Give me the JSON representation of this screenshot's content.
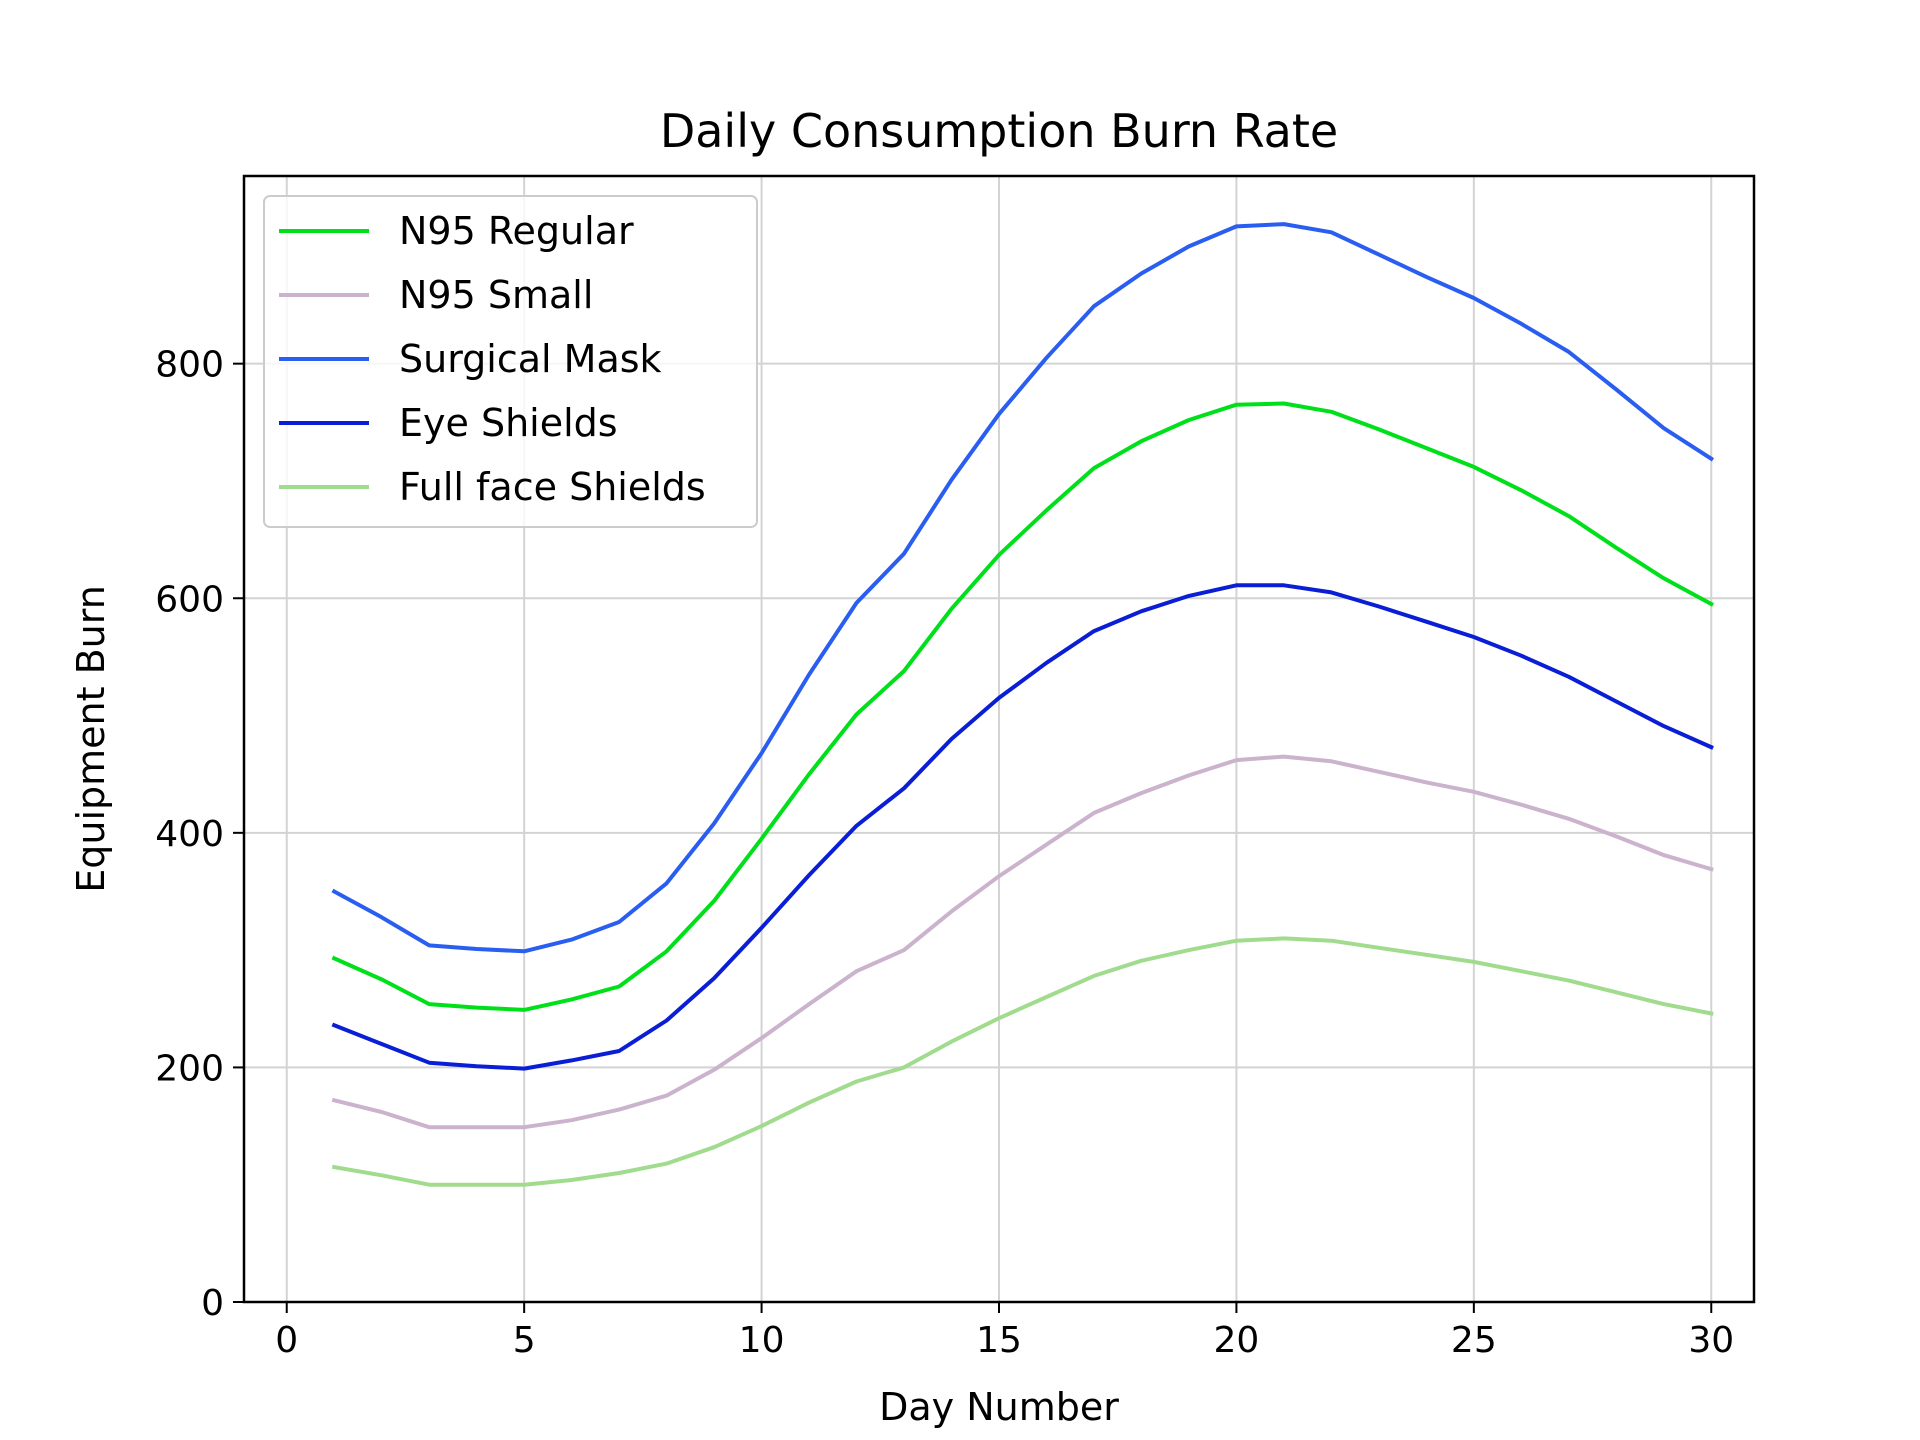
{
  "chart_data": {
    "type": "line",
    "title": "Daily Consumption Burn Rate",
    "xlabel": "Day Number",
    "ylabel": "Equipment Burn",
    "xlim": [
      -0.9,
      30.9
    ],
    "ylim": [
      0,
      960
    ],
    "x_ticks": [
      0,
      5,
      10,
      15,
      20,
      25,
      30
    ],
    "y_ticks": [
      0,
      200,
      400,
      600,
      800
    ],
    "grid": true,
    "legend_position": "upper-left",
    "x": [
      1,
      2,
      3,
      4,
      5,
      6,
      7,
      8,
      9,
      10,
      11,
      12,
      13,
      14,
      15,
      16,
      17,
      18,
      19,
      20,
      21,
      22,
      23,
      24,
      25,
      26,
      27,
      28,
      29,
      30
    ],
    "series": [
      {
        "name": "N95 Regular",
        "color": "#00e01a",
        "values": [
          293,
          275,
          254,
          251,
          249,
          258,
          269,
          299,
          342,
          395,
          450,
          501,
          538,
          591,
          637,
          675,
          711,
          734,
          752,
          765,
          766,
          759,
          744,
          728,
          712,
          692,
          670,
          643,
          617,
          595
        ]
      },
      {
        "name": "N95 Small",
        "color": "#cbb2cd",
        "values": [
          172,
          162,
          149,
          149,
          149,
          155,
          164,
          176,
          198,
          225,
          254,
          282,
          300,
          333,
          363,
          390,
          417,
          434,
          449,
          462,
          465,
          461,
          452,
          443,
          435,
          424,
          412,
          397,
          381,
          369
        ]
      },
      {
        "name": "Surgical Mask",
        "color": "#2a5ef0",
        "values": [
          350,
          328,
          304,
          301,
          299,
          309,
          324,
          357,
          408,
          468,
          535,
          596,
          638,
          701,
          757,
          805,
          849,
          877,
          900,
          917,
          919,
          912,
          893,
          874,
          856,
          834,
          810,
          778,
          745,
          719
        ]
      },
      {
        "name": "Eye Shields",
        "color": "#0a1ed6",
        "values": [
          236,
          220,
          204,
          201,
          199,
          206,
          214,
          240,
          276,
          319,
          364,
          406,
          438,
          480,
          515,
          545,
          572,
          589,
          602,
          611,
          611,
          605,
          593,
          580,
          567,
          551,
          533,
          512,
          491,
          473
        ]
      },
      {
        "name": "Full face Shields",
        "color": "#a1db8e",
        "values": [
          115,
          108,
          100,
          100,
          100,
          104,
          110,
          118,
          132,
          150,
          170,
          188,
          200,
          222,
          242,
          260,
          278,
          291,
          300,
          308,
          310,
          308,
          302,
          296,
          290,
          282,
          274,
          264,
          254,
          246
        ]
      }
    ]
  }
}
